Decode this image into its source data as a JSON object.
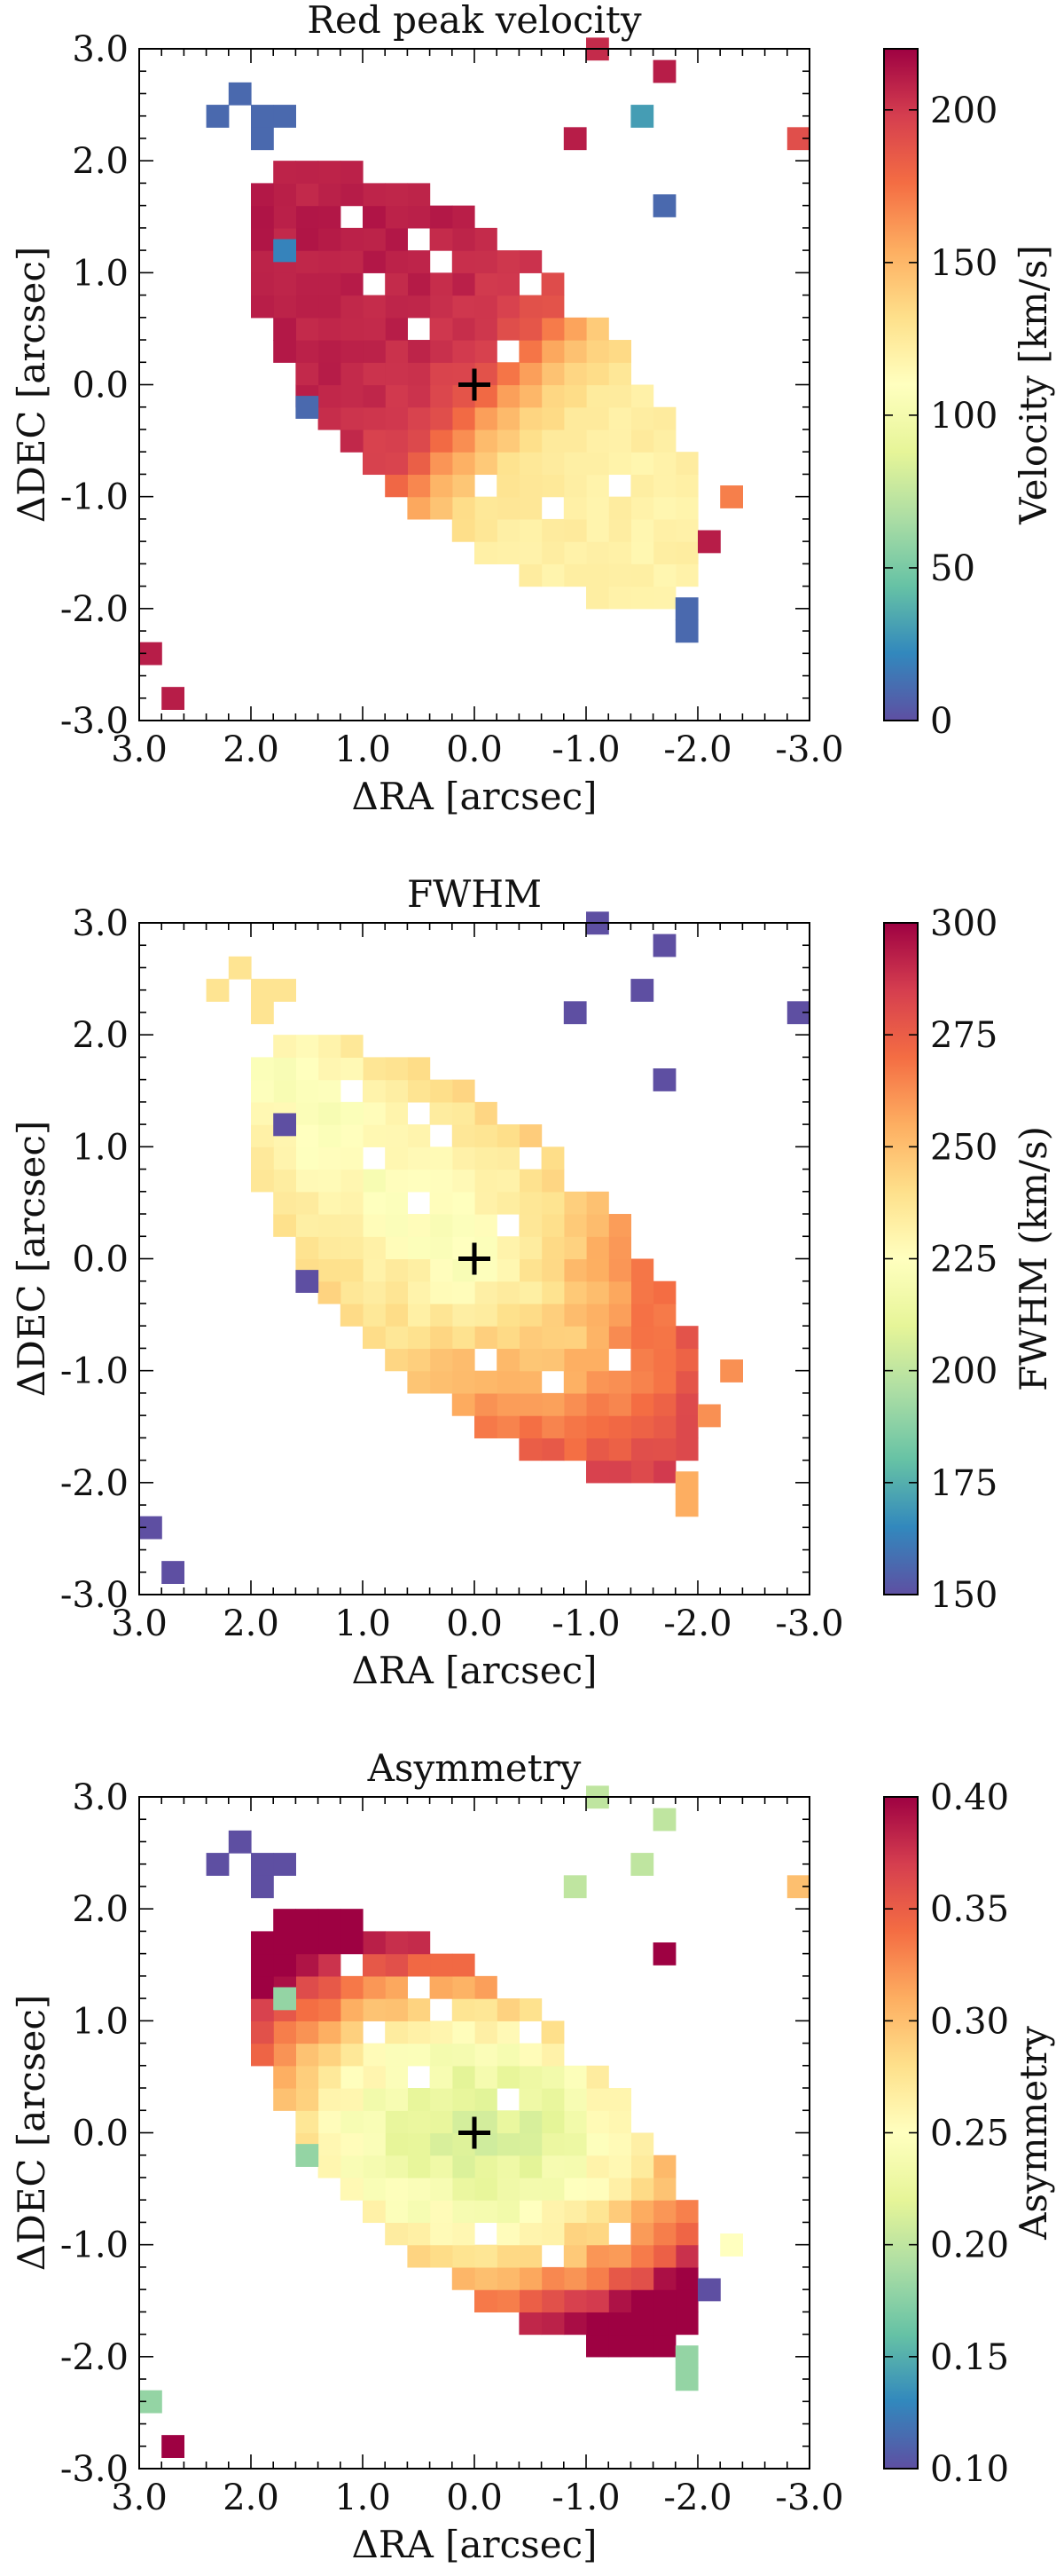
{
  "chart_data": [
    {
      "type": "heatmap",
      "title": "Red peak velocity",
      "xlabel": "ΔRA [arcsec]",
      "ylabel": "ΔDEC [arcsec]",
      "xlim": [
        3.0,
        -3.0
      ],
      "ylim": [
        -3.0,
        3.0
      ],
      "xticks": [
        "-3.0",
        "-2.0",
        "-1.0",
        "0.0",
        "1.0",
        "2.0",
        "3.0"
      ],
      "yticks": [
        "3.0",
        "2.0",
        "1.0",
        "0.0",
        "-1.0",
        "-2.0",
        "-3.0"
      ],
      "colorbar": {
        "label": "Velocity [km/s]",
        "range": [
          0,
          220
        ],
        "ticks": [
          "0",
          "50",
          "100",
          "150",
          "200"
        ],
        "tick_values": [
          0,
          50,
          100,
          150,
          200
        ],
        "colormap": "Spectral_r"
      },
      "center_marker": {
        "ra": 0.0,
        "dec": 0.0,
        "symbol": "+"
      },
      "grid": false
    },
    {
      "type": "heatmap",
      "title": "FWHM",
      "xlabel": "ΔRA [arcsec]",
      "ylabel": "ΔDEC [arcsec]",
      "xlim": [
        3.0,
        -3.0
      ],
      "ylim": [
        -3.0,
        3.0
      ],
      "xticks": [
        "-3.0",
        "-2.0",
        "-1.0",
        "0.0",
        "1.0",
        "2.0",
        "3.0"
      ],
      "yticks": [
        "3.0",
        "2.0",
        "1.0",
        "0.0",
        "-1.0",
        "-2.0",
        "-3.0"
      ],
      "colorbar": {
        "label": "FWHM (km/s)",
        "range": [
          150,
          300
        ],
        "ticks": [
          "150",
          "175",
          "200",
          "225",
          "250",
          "275",
          "300"
        ],
        "tick_values": [
          150,
          175,
          200,
          225,
          250,
          275,
          300
        ],
        "colormap": "Spectral_r"
      },
      "center_marker": {
        "ra": 0.0,
        "dec": 0.0,
        "symbol": "+"
      },
      "grid": false
    },
    {
      "type": "heatmap",
      "title": "Asymmetry",
      "xlabel": "ΔRA [arcsec]",
      "ylabel": "ΔDEC [arcsec]",
      "xlim": [
        3.0,
        -3.0
      ],
      "ylim": [
        -3.0,
        3.0
      ],
      "xticks": [
        "-3.0",
        "-2.0",
        "-1.0",
        "0.0",
        "1.0",
        "2.0",
        "3.0"
      ],
      "yticks": [
        "3.0",
        "2.0",
        "1.0",
        "0.0",
        "-1.0",
        "-2.0",
        "-3.0"
      ],
      "colorbar": {
        "label": "Asymmetry",
        "range": [
          0.1,
          0.4
        ],
        "ticks": [
          "0.10",
          "0.15",
          "0.20",
          "0.25",
          "0.30",
          "0.35",
          "0.40"
        ],
        "tick_values": [
          0.1,
          0.15,
          0.2,
          0.25,
          0.3,
          0.35,
          0.4
        ],
        "colormap": "Spectral_r"
      },
      "center_marker": {
        "ra": 0.0,
        "dec": 0.0,
        "symbol": "+"
      },
      "grid": false
    }
  ]
}
